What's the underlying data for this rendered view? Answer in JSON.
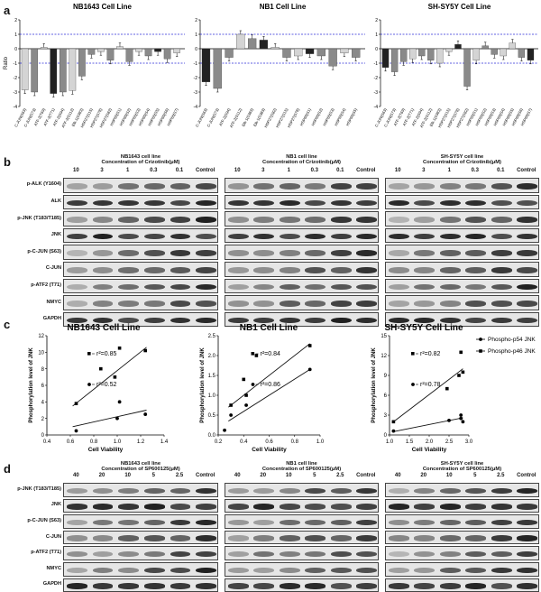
{
  "panel_labels": {
    "a": "a",
    "b": "b",
    "c": "c",
    "d": "d"
  },
  "colors": {
    "dashed_line": "#2b2bd9",
    "bar_dark": "#222222",
    "bar_mid": "#8a8a8a",
    "bar_light": "#d4d4d4",
    "regression": "#111111"
  },
  "chart_data": [
    {
      "type": "bar",
      "title": "NB1643 Cell Line",
      "ylabel": "Ratio",
      "ylim": [
        -4,
        2
      ],
      "yticks": [
        "2",
        "1",
        "0",
        "-1",
        "-2",
        "-3",
        "-4"
      ],
      "ref_lines": [
        1,
        -1
      ],
      "categories": [
        "C-JUN(S63)",
        "C-JUN(S73)",
        "ATF-2(T69)",
        "ATF-2(T71)",
        "ATF-2(S94)",
        "ATF-2(S112)",
        "Elk-1(S383)",
        "HSP27(S15)",
        "HSP27(S78)",
        "HSP27(S82)",
        "HSP60(S1)",
        "HSP60(S2)",
        "HSP60(S3)",
        "HSP60(S4)",
        "HSP60(S5)",
        "HSP60(S6)",
        "HSP60(S7)"
      ],
      "values": [
        -2.85,
        -3.0,
        0.1,
        -3.1,
        -3.0,
        -2.9,
        -1.9,
        -0.4,
        -0.2,
        -0.8,
        0.15,
        -0.9,
        -0.2,
        -0.5,
        -0.2,
        -0.7,
        -0.3
      ],
      "shade": [
        "light",
        "mid",
        "light",
        "dark",
        "mid",
        "light",
        "mid",
        "mid",
        "light",
        "mid",
        "light",
        "mid",
        "light",
        "mid",
        "dark",
        "mid",
        "light"
      ]
    },
    {
      "type": "bar",
      "title": "NB1 Cell Line",
      "ylim": [
        -4,
        2
      ],
      "yticks": [
        "2",
        "1",
        "0",
        "-1",
        "-2",
        "-3",
        "-4"
      ],
      "ref_lines": [
        1,
        -1
      ],
      "categories": [
        "C-JUN(S63)",
        "C-JUN(S73)",
        "ATF-2(S94)",
        "ATF-2(S112)",
        "Elk-1(S383)",
        "Elk-1(S383)",
        "HSP27(S82)",
        "HSP27(S15)",
        "HSP27(S78)",
        "HSP60(S1)",
        "HSP60(S2)",
        "HSP60(S3)",
        "HSP60(S4)",
        "HSP60(S5)"
      ],
      "values": [
        -2.3,
        -2.75,
        -0.6,
        1.0,
        0.7,
        0.6,
        0.1,
        -0.6,
        -0.5,
        -0.35,
        -0.5,
        -1.2,
        -0.3,
        -0.6
      ],
      "shade": [
        "dark",
        "mid",
        "mid",
        "light",
        "mid",
        "dark",
        "light",
        "mid",
        "light",
        "dark",
        "mid",
        "mid",
        "light",
        "mid"
      ]
    },
    {
      "type": "bar",
      "title": "SH-SY5Y Cell Line",
      "ylim": [
        -4,
        2
      ],
      "yticks": [
        "2",
        "1",
        "0",
        "-1",
        "-2",
        "-3",
        "-4"
      ],
      "ref_lines": [
        1,
        -1
      ],
      "categories": [
        "C-JUN(S63)",
        "C-JUN(S73)",
        "ATF-2(T69)",
        "ATF-2(T71)",
        "ATF-2(S94)",
        "ATF-2(S112)",
        "Elk-1(S383)",
        "HSP27(S15)",
        "HSP27(S78)",
        "HSP27(S82)",
        "HSP60(S1)",
        "HSP60(S2)",
        "HSP60(S3)",
        "HSP60(S4)",
        "HSP60(S5)",
        "HSP60(S6)",
        "HSP60(S7)"
      ],
      "values": [
        -1.3,
        -1.6,
        -0.9,
        -0.7,
        -0.5,
        -0.8,
        -1.0,
        -0.2,
        0.3,
        -2.6,
        -0.8,
        0.2,
        -0.4,
        -0.5,
        0.4,
        -0.6,
        -0.8
      ],
      "shade": [
        "dark",
        "mid",
        "mid",
        "light",
        "mid",
        "mid",
        "light",
        "light",
        "dark",
        "mid",
        "light",
        "mid",
        "mid",
        "light",
        "light",
        "mid",
        "dark"
      ]
    },
    {
      "type": "scatter",
      "title": "NB1643 Cell Line",
      "xlabel": "Cell Viability",
      "ylabel": "Phosphorylation level of JNK",
      "xlim": [
        0.4,
        1.4
      ],
      "ylim": [
        0,
        12
      ],
      "xticks": [
        "0.4",
        "0.6",
        "0.8",
        "1.0",
        "1.2",
        "1.4"
      ],
      "yticks": [
        "0",
        "2",
        "4",
        "6",
        "8",
        "10",
        "12"
      ],
      "series": [
        {
          "marker": "square",
          "r2": "r²=0.85",
          "points": [
            [
              0.65,
              3.8
            ],
            [
              0.98,
              7.0
            ],
            [
              1.02,
              10.5
            ],
            [
              1.24,
              10.2
            ],
            [
              0.86,
              8.0
            ]
          ],
          "line": [
            [
              0.62,
              3.5
            ],
            [
              1.25,
              10.6
            ]
          ]
        },
        {
          "marker": "circle",
          "r2": "r²=0.52",
          "points": [
            [
              0.65,
              0.5
            ],
            [
              1.0,
              2.0
            ],
            [
              1.02,
              4.0
            ],
            [
              1.24,
              2.5
            ]
          ],
          "line": [
            [
              0.62,
              1.0
            ],
            [
              1.25,
              3.0
            ]
          ]
        }
      ]
    },
    {
      "type": "scatter",
      "title": "NB1 Cell Line",
      "xlabel": "Cell Viability",
      "ylabel": "Phosphorylation level of JNK",
      "xlim": [
        0.2,
        1.0
      ],
      "ylim": [
        0,
        2.5
      ],
      "xticks": [
        "0.2",
        "0.4",
        "0.6",
        "0.8",
        "1.0"
      ],
      "yticks": [
        "0.0",
        "0.5",
        "1.0",
        "1.5",
        "2.0",
        "2.5"
      ],
      "series": [
        {
          "marker": "square",
          "r2": "r²=0.84",
          "points": [
            [
              0.3,
              0.75
            ],
            [
              0.4,
              1.4
            ],
            [
              0.42,
              1.0
            ],
            [
              0.5,
              2.0
            ],
            [
              0.92,
              2.25
            ]
          ],
          "line": [
            [
              0.28,
              0.7
            ],
            [
              0.92,
              2.3
            ]
          ]
        },
        {
          "marker": "circle",
          "r2": "r²=0.86",
          "points": [
            [
              0.25,
              0.12
            ],
            [
              0.3,
              0.5
            ],
            [
              0.42,
              0.75
            ],
            [
              0.92,
              1.65
            ]
          ],
          "line": [
            [
              0.28,
              0.35
            ],
            [
              0.92,
              1.65
            ]
          ]
        }
      ]
    },
    {
      "type": "scatter",
      "title": "SH-SY5Y Cell Line",
      "xlabel": "Cell Viability",
      "ylabel": "Phosphorylation level of JNK",
      "xlim": [
        1.0,
        3.0
      ],
      "ylim": [
        0,
        15
      ],
      "xticks": [
        "1.0",
        "1.5",
        "2.0",
        "2.5",
        "3.0"
      ],
      "yticks": [
        "0",
        "3",
        "6",
        "9",
        "12",
        "15"
      ],
      "legend": [
        "Phospho-p54 JNK",
        "Phospho-p46 JNK"
      ],
      "series": [
        {
          "marker": "square",
          "r2": "r²=0.82",
          "points": [
            [
              1.1,
              2.0
            ],
            [
              2.45,
              7.0
            ],
            [
              2.75,
              9.0
            ],
            [
              2.8,
              12.5
            ],
            [
              2.85,
              9.5
            ]
          ],
          "line": [
            [
              1.1,
              2.0
            ],
            [
              2.85,
              10.0
            ]
          ]
        },
        {
          "marker": "circle",
          "r2": "r²=0.78",
          "points": [
            [
              1.1,
              0.6
            ],
            [
              2.5,
              2.2
            ],
            [
              2.8,
              2.5
            ],
            [
              2.8,
              3.0
            ],
            [
              2.85,
              2.0
            ]
          ],
          "line": [
            [
              1.1,
              0.5
            ],
            [
              2.85,
              2.6
            ]
          ]
        }
      ]
    }
  ],
  "blot_b": {
    "titles": [
      "NB1643 cell line",
      "NB1 cell line",
      "SH-SY5Y cell line"
    ],
    "concentration": "Concentration of Crizotinib(μM)",
    "doses": [
      "10",
      "3",
      "1",
      "0.3",
      "0.1",
      "Control"
    ],
    "rows": [
      "p-ALK (Y1604)",
      "ALK",
      "p-JNK (T183/T185)",
      "JNK",
      "p-C-JUN (S63)",
      "C-JUN",
      "p-ATF2 (T71)",
      "NMYC",
      "GAPDH"
    ]
  },
  "blot_d": {
    "titles": [
      "NB1643 cell line",
      "NB1 cell line",
      "SH-SY5Y cell line"
    ],
    "concentration": "Concentration of SP600125(μM)",
    "doses": [
      "40",
      "20",
      "10",
      "5",
      "2.5",
      "Control"
    ],
    "rows": [
      "p-JNK (T183/T185)",
      "JNK",
      "p-C-JUN (S63)",
      "C-JUN",
      "p-ATF2 (T71)",
      "NMYC",
      "GAPDH"
    ]
  }
}
